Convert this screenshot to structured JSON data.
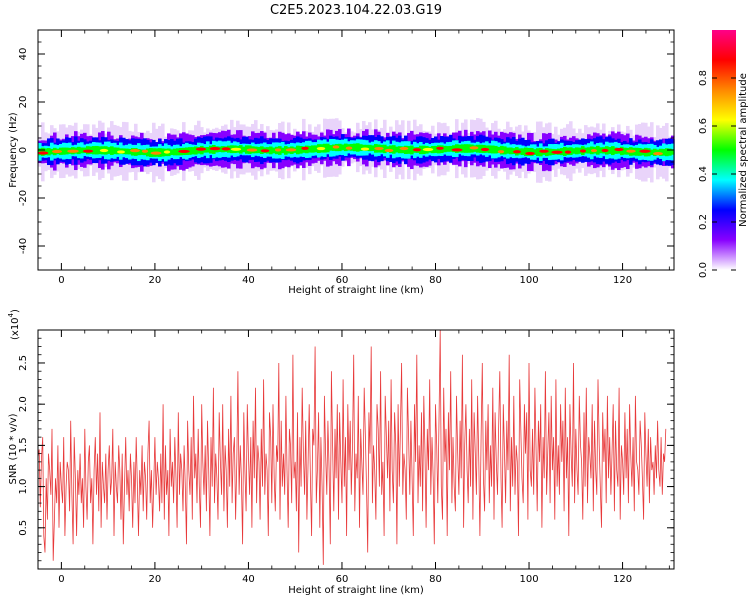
{
  "figure_title": "C2E5.2023.104.22.03.G19",
  "chart_data": [
    {
      "type": "heatmap",
      "name": "spectrogram",
      "xlabel": "Height of straight line (km)",
      "ylabel": "Frequency (Hz)",
      "xlim": [
        -5,
        131
      ],
      "ylim": [
        -50,
        50
      ],
      "x_ticks": [
        0,
        20,
        40,
        60,
        80,
        100,
        120
      ],
      "y_ticks": [
        -40,
        -20,
        0,
        20,
        40
      ],
      "ridge_freq_hz": 0,
      "ridge_halfwidth_hz": 5,
      "colorbar": {
        "label": "Normalized spectral amplitude",
        "range": [
          0.0,
          1.0
        ],
        "ticks": [
          0.0,
          0.2,
          0.4,
          0.6,
          0.8
        ],
        "colors": [
          "#ffffff",
          "#8800ff",
          "#0000ff",
          "#00ffff",
          "#00ff00",
          "#ffff00",
          "#ff8800",
          "#ff0000",
          "#ff0088"
        ]
      }
    },
    {
      "type": "line",
      "name": "snr",
      "xlabel": "Height of straight line (km)",
      "ylabel": "SNR (10 * v/v)",
      "yscale_label": "(x10",
      "yscale_exp": "4",
      "yscale_close": ")",
      "xlim": [
        -5,
        131
      ],
      "ylim": [
        0,
        2.9
      ],
      "x_ticks": [
        0,
        20,
        40,
        60,
        80,
        100,
        120
      ],
      "y_ticks": [
        0.5,
        1.0,
        1.5,
        2.0,
        2.5
      ],
      "color": "#e8393a",
      "series": [
        {
          "x_start": -5,
          "x_step": 0.25,
          "values": [
            1.36,
            1.45,
            0.75,
            1.35,
            1.6,
            0.4,
            0.2,
            1.1,
            0.6,
            1.4,
            1.2,
            0.9,
            1.7,
            0.1,
            0.6,
            1.1,
            0.8,
            1.5,
            0.5,
            1.3,
            1.0,
            0.8,
            1.6,
            0.4,
            1.0,
            1.3,
            1.2,
            0.7,
            1.8,
            0.9,
            0.3,
            1.6,
            1.1,
            0.4,
            1.2,
            0.9,
            1.4,
            0.8,
            1.1,
            0.5,
            1.7,
            1.0,
            0.6,
            1.3,
            1.5,
            0.8,
            1.1,
            0.3,
            1.2,
            1.6,
            0.9,
            1.4,
            0.7,
            1.9,
            0.5,
            1.3,
            1.0,
            0.8,
            1.4,
            0.6,
            1.2,
            1.5,
            0.9,
            1.1,
            1.7,
            0.4,
            1.3,
            1.0,
            0.8,
            1.5,
            1.2,
            0.6,
            1.4,
            0.3,
            1.0,
            1.6,
            0.9,
            1.2,
            0.7,
            1.4,
            1.1,
            0.5,
            1.3,
            0.8,
            1.6,
            1.0,
            0.4,
            1.2,
            0.9,
            1.5,
            0.7,
            1.3,
            1.1,
            0.6,
            1.4,
            1.8,
            0.8,
            1.2,
            0.5,
            1.0,
            1.6,
            0.9,
            1.3,
            1.1,
            0.7,
            1.4,
            0.8,
            2.0,
            0.6,
            1.5,
            0.9,
            1.2,
            0.4,
            1.7,
            1.0,
            1.3,
            0.8,
            1.6,
            1.1,
            0.5,
            1.9,
            0.9,
            1.4,
            1.2,
            0.7,
            1.5,
            1.0,
            0.3,
            1.8,
            1.2,
            0.9,
            1.6,
            0.6,
            2.1,
            1.1,
            1.4,
            0.8,
            1.7,
            1.0,
            0.5,
            2.0,
            1.3,
            0.9,
            1.5,
            0.7,
            1.8,
            1.2,
            0.4,
            1.6,
            1.0,
            2.2,
            0.8,
            1.4,
            1.1,
            0.6,
            1.9,
            1.3,
            0.9,
            2.0,
            0.7,
            1.5,
            1.2,
            0.5,
            1.7,
            1.0,
            2.1,
            0.8,
            1.4,
            1.6,
            0.6,
            1.3,
            2.4,
            0.9,
            1.5,
            1.1,
            0.3,
            1.9,
            1.2,
            0.7,
            2.0,
            1.4,
            0.9,
            1.6,
            0.5,
            1.8,
            1.1,
            2.2,
            0.8,
            1.5,
            1.3,
            0.6,
            1.7,
            1.0,
            2.3,
            0.9,
            1.4,
            1.2,
            0.4,
            1.9,
            1.6,
            0.8,
            2.0,
            1.1,
            0.7,
            1.5,
            1.3,
            2.5,
            0.6,
            1.8,
            1.0,
            1.4,
            0.9,
            2.1,
            1.2,
            0.5,
            1.7,
            1.5,
            0.8,
            2.6,
            1.1,
            1.3,
            0.7,
            1.9,
            0.2,
            1.6,
            1.0,
            2.2,
            1.4,
            0.9,
            1.8,
            0.6,
            1.3,
            2.0,
            1.1,
            0.4,
            1.7,
            1.5,
            2.7,
            0.8,
            1.2,
            1.9,
            0.5,
            1.6,
            1.0,
            0.05,
            2.1,
            1.4,
            0.9,
            1.8,
            1.2,
            0.3,
            2.4,
            1.5,
            0.7,
            1.7,
            1.1,
            2.0,
            0.6,
            1.9,
            1.3,
            0.8,
            2.3,
            1.0,
            1.6,
            0.4,
            2.0,
            1.2,
            1.8,
            0.9,
            1.5,
            2.6,
            0.7,
            1.4,
            1.1,
            2.1,
            0.5,
            1.7,
            1.3,
            0.9,
            2.2,
            1.6,
            1.0,
            0.2,
            1.9,
            1.4,
            2.7,
            0.8,
            1.5,
            1.2,
            0.6,
            2.0,
            1.7,
            1.0,
            2.4,
            0.9,
            1.3,
            0.4,
            2.1,
            1.6,
            1.1,
            1.8,
            0.7,
            2.3,
            1.2,
            0.8,
            1.9,
            1.5,
            0.3,
            2.0,
            1.0,
            1.7,
            2.5,
            0.9,
            1.4,
            1.2,
            0.6,
            2.2,
            1.6,
            0.9,
            1.8,
            1.1,
            0.4,
            2.0,
            1.3,
            2.6,
            0.8,
            1.5,
            1.0,
            1.9,
            0.7,
            2.1,
            1.4,
            0.5,
            1.7,
            1.2,
            2.3,
            0.9,
            1.6,
            1.1,
            0.3,
            2.0,
            1.5,
            0.8,
            1.8,
            2.9,
            1.0,
            0.6,
            2.2,
            1.3,
            1.7,
            0.4,
            1.9,
            1.2,
            2.4,
            0.8,
            1.6,
            1.0,
            0.7,
            2.1,
            1.4,
            0.9,
            1.8,
            1.1,
            2.6,
            0.5,
            1.5,
            2.0,
            1.2,
            0.8,
            1.7,
            1.0,
            2.3,
            0.6,
            1.9,
            1.4,
            0.9,
            2.1,
            1.3,
            0.4,
            1.6,
            2.5,
            1.1,
            0.7,
            1.8,
            1.2,
            2.0,
            0.8,
            1.5,
            1.0,
            2.2,
            0.6,
            1.9,
            1.3,
            0.9,
            1.7,
            2.4,
            1.1,
            0.5,
            2.0,
            1.4,
            0.8,
            1.8,
            1.2,
            2.6,
            0.7,
            1.6,
            1.0,
            2.1,
            0.9,
            1.5,
            1.3,
            0.4,
            2.3,
            1.7,
            1.1,
            0.8,
            2.0,
            1.4,
            1.9,
            0.6,
            2.5,
            1.2,
            1.0,
            1.7,
            0.9,
            2.2,
            1.5,
            0.7,
            1.8,
            1.3,
            2.0,
            0.5,
            1.6,
            1.1,
            2.4,
            0.9,
            1.4,
            1.9,
            0.8,
            2.1,
            1.2,
            1.6,
            0.6,
            2.3,
            1.0,
            1.5,
            0.9,
            2.0,
            1.3,
            1.8,
            0.7,
            2.2,
            1.1,
            1.6,
            0.4,
            2.0,
            1.4,
            1.0,
            2.5,
            0.8,
            1.7,
            1.2,
            0.9,
            2.1,
            1.5,
            1.3,
            0.6,
            1.9,
            1.0,
            2.2,
            0.8,
            1.6,
            1.4,
            1.1,
            2.0,
            0.7,
            1.8,
            1.2,
            0.9,
            2.3,
            1.5,
            1.0,
            0.5,
            1.9,
            1.3,
            1.7,
            0.8,
            2.1,
            1.1,
            1.6,
            0.9,
            1.4,
            2.0,
            0.7,
            1.8,
            1.2,
            1.0,
            2.2,
            0.6,
            1.5,
            1.3,
            0.9,
            1.9,
            1.1,
            1.7,
            0.8,
            2.0,
            1.4,
            1.0,
            1.6,
            0.7,
            2.1,
            1.3,
            1.2,
            0.9,
            1.8,
            1.5,
            1.1,
            0.6,
            1.9,
            1.4,
            1.0,
            1.7,
            0.8,
            1.6,
            1.2,
            1.3,
            0.9,
            1.5,
            1.1,
            1.8,
            1.2,
            1.0,
            1.6,
            0.9,
            1.4,
            1.3,
            1.7
          ]
        }
      ]
    }
  ]
}
